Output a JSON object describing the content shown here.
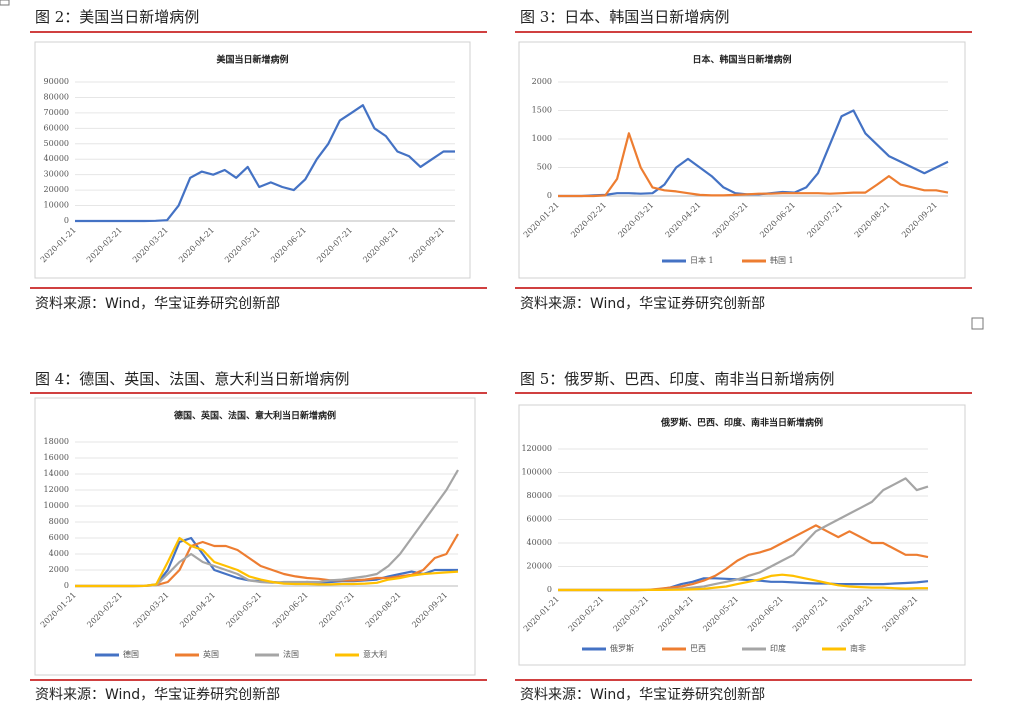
{
  "chart_data": [
    {
      "type": "line",
      "caption": "图 2：美国当日新增病例",
      "title": "美国当日新增病例",
      "source": "资料来源：Wind，华宝证券研究创新部",
      "categories": [
        "2020-01-21",
        null,
        null,
        null,
        "2020-02-21",
        null,
        null,
        null,
        "2020-03-21",
        null,
        null,
        null,
        "2020-04-21",
        null,
        null,
        null,
        "2020-05-21",
        null,
        null,
        null,
        "2020-06-21",
        null,
        null,
        null,
        "2020-07-21",
        null,
        null,
        null,
        "2020-08-21",
        null,
        null,
        null,
        "2020-09-21",
        null
      ],
      "ylim": [
        0,
        90000
      ],
      "yticks": [
        0,
        10000,
        20000,
        30000,
        40000,
        50000,
        60000,
        70000,
        80000,
        90000
      ],
      "series": [
        {
          "name": null,
          "color": "#4472c4",
          "values": [
            0,
            0,
            0,
            0,
            0,
            0,
            0,
            100,
            500,
            10000,
            28000,
            32000,
            30000,
            33000,
            28000,
            35000,
            22000,
            25000,
            22000,
            20000,
            27000,
            40000,
            50000,
            65000,
            70000,
            75000,
            60000,
            55000,
            45000,
            42000,
            35000,
            40000,
            45000,
            45000
          ]
        }
      ]
    },
    {
      "type": "line",
      "caption": "图 3：日本、韩国当日新增病例",
      "title": "日本、韩国当日新增病例",
      "categories": [
        "2020-01-21",
        null,
        null,
        null,
        "2020-02-21",
        null,
        null,
        null,
        "2020-03-21",
        null,
        null,
        null,
        "2020-04-21",
        null,
        null,
        null,
        "2020-05-21",
        null,
        null,
        null,
        "2020-06-21",
        null,
        null,
        null,
        "2020-07-21",
        null,
        null,
        null,
        "2020-08-21",
        null,
        null,
        null,
        "2020-09-21",
        null
      ],
      "ylim": [
        0,
        2000
      ],
      "yticks": [
        0,
        500,
        1000,
        1500,
        2000
      ],
      "legend": "bottom",
      "series": [
        {
          "name": "日本 1",
          "color": "#4472c4",
          "values": [
            0,
            0,
            0,
            10,
            20,
            50,
            50,
            40,
            50,
            200,
            500,
            650,
            500,
            350,
            150,
            50,
            30,
            30,
            50,
            70,
            60,
            150,
            400,
            900,
            1400,
            1500,
            1100,
            900,
            700,
            600,
            500,
            400,
            500,
            600
          ]
        },
        {
          "name": "韩国 1",
          "color": "#ed7d31",
          "values": [
            0,
            0,
            0,
            0,
            10,
            300,
            1100,
            500,
            150,
            100,
            80,
            50,
            20,
            10,
            10,
            20,
            30,
            40,
            40,
            50,
            50,
            50,
            50,
            40,
            50,
            60,
            60,
            200,
            350,
            200,
            150,
            100,
            100,
            60
          ]
        }
      ]
    },
    {
      "type": "line",
      "caption": "图 4：德国、英国、法国、意大利当日新增病例",
      "title": "德国、英国、法国、意大利当日新增病例",
      "source": "资料来源：Wind，华宝证券研究创新部",
      "categories": [
        "2020-01-21",
        null,
        null,
        null,
        "2020-02-21",
        null,
        null,
        null,
        "2020-03-21",
        null,
        null,
        null,
        "2020-04-21",
        null,
        null,
        null,
        "2020-05-21",
        null,
        null,
        null,
        "2020-06-21",
        null,
        null,
        null,
        "2020-07-21",
        null,
        null,
        null,
        "2020-08-21",
        null,
        null,
        null,
        "2020-09-21",
        null
      ],
      "ylim": [
        0,
        18000
      ],
      "yticks": [
        0,
        2000,
        4000,
        6000,
        8000,
        10000,
        12000,
        14000,
        16000,
        18000
      ],
      "legend": "bottom",
      "series": [
        {
          "name": "德国",
          "color": "#4472c4",
          "values": [
            0,
            0,
            0,
            0,
            0,
            0,
            10,
            200,
            2000,
            5500,
            6000,
            4000,
            2000,
            1500,
            1000,
            700,
            600,
            500,
            400,
            400,
            500,
            400,
            500,
            600,
            600,
            700,
            800,
            1200,
            1500,
            1800,
            1500,
            2000,
            2000,
            2000
          ]
        },
        {
          "name": "英国",
          "color": "#ed7d31",
          "values": [
            0,
            0,
            0,
            0,
            0,
            0,
            10,
            100,
            500,
            2000,
            5000,
            5500,
            5000,
            5000,
            4500,
            3500,
            2500,
            2000,
            1500,
            1200,
            1000,
            900,
            700,
            700,
            700,
            800,
            1000,
            1000,
            1200,
            1400,
            2000,
            3500,
            4000,
            6500
          ]
        },
        {
          "name": "法国",
          "color": "#a5a5a5",
          "values": [
            0,
            0,
            0,
            0,
            0,
            0,
            10,
            100,
            1500,
            3000,
            4000,
            3000,
            2500,
            2000,
            1500,
            700,
            500,
            400,
            500,
            500,
            500,
            500,
            700,
            800,
            1000,
            1200,
            1500,
            2500,
            4000,
            6000,
            8000,
            10000,
            12000,
            14500
          ]
        },
        {
          "name": "意大利",
          "color": "#ffc000",
          "values": [
            0,
            0,
            0,
            0,
            0,
            0,
            10,
            200,
            3000,
            6000,
            5000,
            4500,
            3000,
            2500,
            2000,
            1200,
            800,
            500,
            300,
            250,
            250,
            200,
            200,
            250,
            250,
            300,
            400,
            800,
            1000,
            1300,
            1500,
            1600,
            1700,
            1800
          ]
        }
      ]
    },
    {
      "type": "line",
      "caption": "图 5：俄罗斯、巴西、印度、南非当日新增病例",
      "title": "俄罗斯、巴西、印度、南非当日新增病例",
      "source": "资料来源：Wind，华宝证券研究创新部",
      "categories": [
        "2020-01-21",
        null,
        null,
        null,
        "2020-02-21",
        null,
        null,
        null,
        "2020-03-21",
        null,
        null,
        null,
        "2020-04-21",
        null,
        null,
        null,
        "2020-05-21",
        null,
        null,
        null,
        "2020-06-21",
        null,
        null,
        null,
        "2020-07-21",
        null,
        null,
        null,
        "2020-08-21",
        null,
        null,
        null,
        "2020-09-21",
        null
      ],
      "ylim": [
        0,
        120000
      ],
      "yticks": [
        0,
        20000,
        40000,
        60000,
        80000,
        100000,
        120000
      ],
      "legend": "bottom",
      "series": [
        {
          "name": "俄罗斯",
          "color": "#4472c4",
          "values": [
            0,
            0,
            0,
            0,
            0,
            0,
            0,
            0,
            100,
            500,
            2000,
            5000,
            7000,
            10000,
            10000,
            9500,
            9000,
            8500,
            8000,
            7000,
            7000,
            6500,
            6000,
            5500,
            5500,
            5000,
            5000,
            5000,
            5000,
            5000,
            5500,
            6000,
            6500,
            7500
          ]
        },
        {
          "name": "巴西",
          "color": "#ed7d31",
          "values": [
            0,
            0,
            0,
            0,
            0,
            0,
            0,
            0,
            200,
            1000,
            2000,
            3000,
            5000,
            8000,
            12000,
            18000,
            25000,
            30000,
            32000,
            35000,
            40000,
            45000,
            50000,
            55000,
            50000,
            45000,
            50000,
            45000,
            40000,
            40000,
            35000,
            30000,
            30000,
            28000
          ]
        },
        {
          "name": "印度",
          "color": "#a5a5a5",
          "values": [
            0,
            0,
            0,
            0,
            0,
            0,
            0,
            0,
            100,
            200,
            500,
            1000,
            2000,
            3000,
            5000,
            7000,
            9000,
            12000,
            15000,
            20000,
            25000,
            30000,
            40000,
            50000,
            55000,
            60000,
            65000,
            70000,
            75000,
            85000,
            90000,
            95000,
            85000,
            88000
          ]
        },
        {
          "name": "南非",
          "color": "#ffc000",
          "values": [
            0,
            0,
            0,
            0,
            0,
            0,
            0,
            0,
            50,
            100,
            200,
            300,
            500,
            1000,
            2000,
            3000,
            5000,
            7000,
            9000,
            12000,
            13000,
            12000,
            10000,
            8000,
            6000,
            4000,
            3000,
            2500,
            2000,
            2000,
            1500,
            1200,
            1500,
            1500
          ]
        }
      ]
    }
  ]
}
